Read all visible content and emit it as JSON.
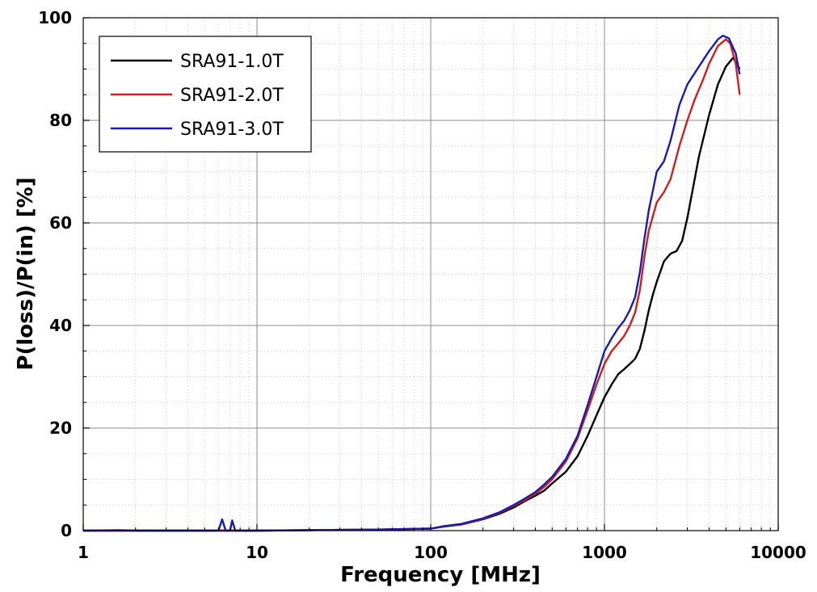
{
  "chart_data": {
    "type": "line",
    "xlabel": "Frequency [MHz]",
    "ylabel": "P(loss)/P(in) [%]",
    "xscale": "log",
    "xlim": [
      1,
      10000
    ],
    "ylim": [
      0,
      100
    ],
    "xticks": [
      "1",
      "10",
      "100",
      "1000",
      "10000"
    ],
    "yticks": [
      "0",
      "20",
      "40",
      "60",
      "80",
      "100"
    ],
    "grid": true,
    "legend_position": "top-left",
    "series": [
      {
        "name": "SRA91-1.0T",
        "color": "#000000",
        "points": [
          [
            1,
            0
          ],
          [
            10,
            0
          ],
          [
            50,
            0.2
          ],
          [
            100,
            0.4
          ],
          [
            120,
            0.8
          ],
          [
            150,
            1.2
          ],
          [
            200,
            2.2
          ],
          [
            250,
            3.3
          ],
          [
            300,
            4.5
          ],
          [
            350,
            5.8
          ],
          [
            400,
            6.8
          ],
          [
            450,
            7.8
          ],
          [
            500,
            9.2
          ],
          [
            600,
            11.5
          ],
          [
            700,
            14.5
          ],
          [
            800,
            18.5
          ],
          [
            900,
            22.5
          ],
          [
            1000,
            26.0
          ],
          [
            1100,
            28.5
          ],
          [
            1200,
            30.5
          ],
          [
            1300,
            31.5
          ],
          [
            1400,
            32.5
          ],
          [
            1500,
            33.5
          ],
          [
            1600,
            35.5
          ],
          [
            1700,
            39.0
          ],
          [
            1800,
            43.0
          ],
          [
            1900,
            46.0
          ],
          [
            2000,
            48.5
          ],
          [
            2200,
            52.5
          ],
          [
            2400,
            54.0
          ],
          [
            2600,
            54.5
          ],
          [
            2800,
            56.5
          ],
          [
            3000,
            61.0
          ],
          [
            3200,
            66.0
          ],
          [
            3500,
            73.0
          ],
          [
            4000,
            81.0
          ],
          [
            4500,
            87.0
          ],
          [
            5000,
            90.5
          ],
          [
            5500,
            92.2
          ],
          [
            6000,
            90.0
          ]
        ]
      },
      {
        "name": "SRA91-2.0T",
        "color": "#cc1f1f",
        "points": [
          [
            1,
            0
          ],
          [
            10,
            0
          ],
          [
            50,
            0.2
          ],
          [
            100,
            0.4
          ],
          [
            120,
            0.8
          ],
          [
            150,
            1.2
          ],
          [
            200,
            2.3
          ],
          [
            250,
            3.5
          ],
          [
            300,
            4.8
          ],
          [
            350,
            6.0
          ],
          [
            400,
            7.2
          ],
          [
            450,
            8.5
          ],
          [
            500,
            10.0
          ],
          [
            600,
            13.5
          ],
          [
            700,
            18.0
          ],
          [
            800,
            23.5
          ],
          [
            900,
            28.5
          ],
          [
            1000,
            32.5
          ],
          [
            1100,
            35.0
          ],
          [
            1200,
            36.5
          ],
          [
            1300,
            38.0
          ],
          [
            1400,
            40.0
          ],
          [
            1500,
            42.5
          ],
          [
            1600,
            47.0
          ],
          [
            1700,
            53.5
          ],
          [
            1800,
            58.5
          ],
          [
            2000,
            64.0
          ],
          [
            2200,
            66.0
          ],
          [
            2400,
            68.5
          ],
          [
            2700,
            75.0
          ],
          [
            3000,
            80.0
          ],
          [
            3300,
            84.0
          ],
          [
            3700,
            88.0
          ],
          [
            4000,
            91.0
          ],
          [
            4500,
            94.5
          ],
          [
            5000,
            95.8
          ],
          [
            5300,
            95.0
          ],
          [
            5700,
            91.0
          ],
          [
            6000,
            85.0
          ]
        ]
      },
      {
        "name": "SRA91-3.0T",
        "color": "#1a1ab0",
        "points": [
          [
            1,
            0
          ],
          [
            1.6,
            0.1
          ],
          [
            2,
            0
          ],
          [
            6.0,
            0
          ],
          [
            6.3,
            2.2
          ],
          [
            6.6,
            0
          ],
          [
            7.0,
            0
          ],
          [
            7.2,
            2.0
          ],
          [
            7.5,
            0
          ],
          [
            10,
            0
          ],
          [
            50,
            0.2
          ],
          [
            100,
            0.4
          ],
          [
            120,
            0.9
          ],
          [
            150,
            1.3
          ],
          [
            200,
            2.4
          ],
          [
            250,
            3.6
          ],
          [
            300,
            5.0
          ],
          [
            350,
            6.3
          ],
          [
            400,
            7.5
          ],
          [
            450,
            9.0
          ],
          [
            500,
            10.5
          ],
          [
            600,
            14.0
          ],
          [
            700,
            18.5
          ],
          [
            800,
            24.5
          ],
          [
            900,
            30.0
          ],
          [
            1000,
            35.0
          ],
          [
            1100,
            37.5
          ],
          [
            1200,
            39.5
          ],
          [
            1300,
            41.0
          ],
          [
            1400,
            43.0
          ],
          [
            1500,
            45.5
          ],
          [
            1600,
            50.5
          ],
          [
            1700,
            57.0
          ],
          [
            1800,
            62.5
          ],
          [
            2000,
            70.0
          ],
          [
            2200,
            72.0
          ],
          [
            2400,
            76.0
          ],
          [
            2700,
            83.0
          ],
          [
            3000,
            87.0
          ],
          [
            3500,
            90.5
          ],
          [
            4000,
            93.5
          ],
          [
            4500,
            95.8
          ],
          [
            4800,
            96.5
          ],
          [
            5200,
            96.0
          ],
          [
            5700,
            93.0
          ],
          [
            6000,
            89.0
          ]
        ]
      }
    ]
  }
}
